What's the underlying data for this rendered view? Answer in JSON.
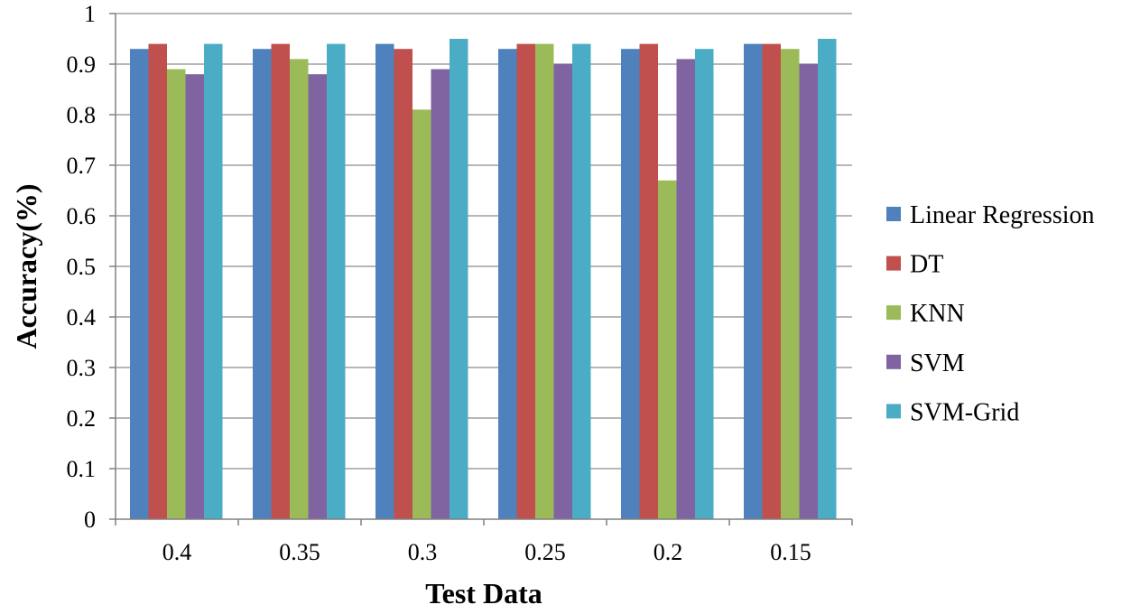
{
  "chart_data": {
    "type": "bar",
    "title": "",
    "xlabel": "Test Data",
    "ylabel": "Accuracy(%)",
    "ylim": [
      0,
      1
    ],
    "yticks": [
      "0",
      "0.1",
      "0.2",
      "0.3",
      "0.4",
      "0.5",
      "0.6",
      "0.7",
      "0.8",
      "0.9",
      "1"
    ],
    "categories": [
      "0.4",
      "0.35",
      "0.3",
      "0.25",
      "0.2",
      "0.15"
    ],
    "grid": true,
    "legend_position": "right",
    "series": [
      {
        "name": "Linear Regression",
        "color": "#4F81BD",
        "values": [
          0.93,
          0.93,
          0.94,
          0.93,
          0.93,
          0.94
        ]
      },
      {
        "name": "DT",
        "color": "#C0504D",
        "values": [
          0.94,
          0.94,
          0.93,
          0.94,
          0.94,
          0.94
        ]
      },
      {
        "name": "KNN",
        "color": "#9BBB59",
        "values": [
          0.89,
          0.91,
          0.81,
          0.94,
          0.67,
          0.93
        ]
      },
      {
        "name": "SVM",
        "color": "#8064A2",
        "values": [
          0.88,
          0.88,
          0.89,
          0.9,
          0.91,
          0.9
        ]
      },
      {
        "name": "SVM-Grid",
        "color": "#4BACC6",
        "values": [
          0.94,
          0.94,
          0.95,
          0.94,
          0.93,
          0.95
        ]
      }
    ]
  }
}
